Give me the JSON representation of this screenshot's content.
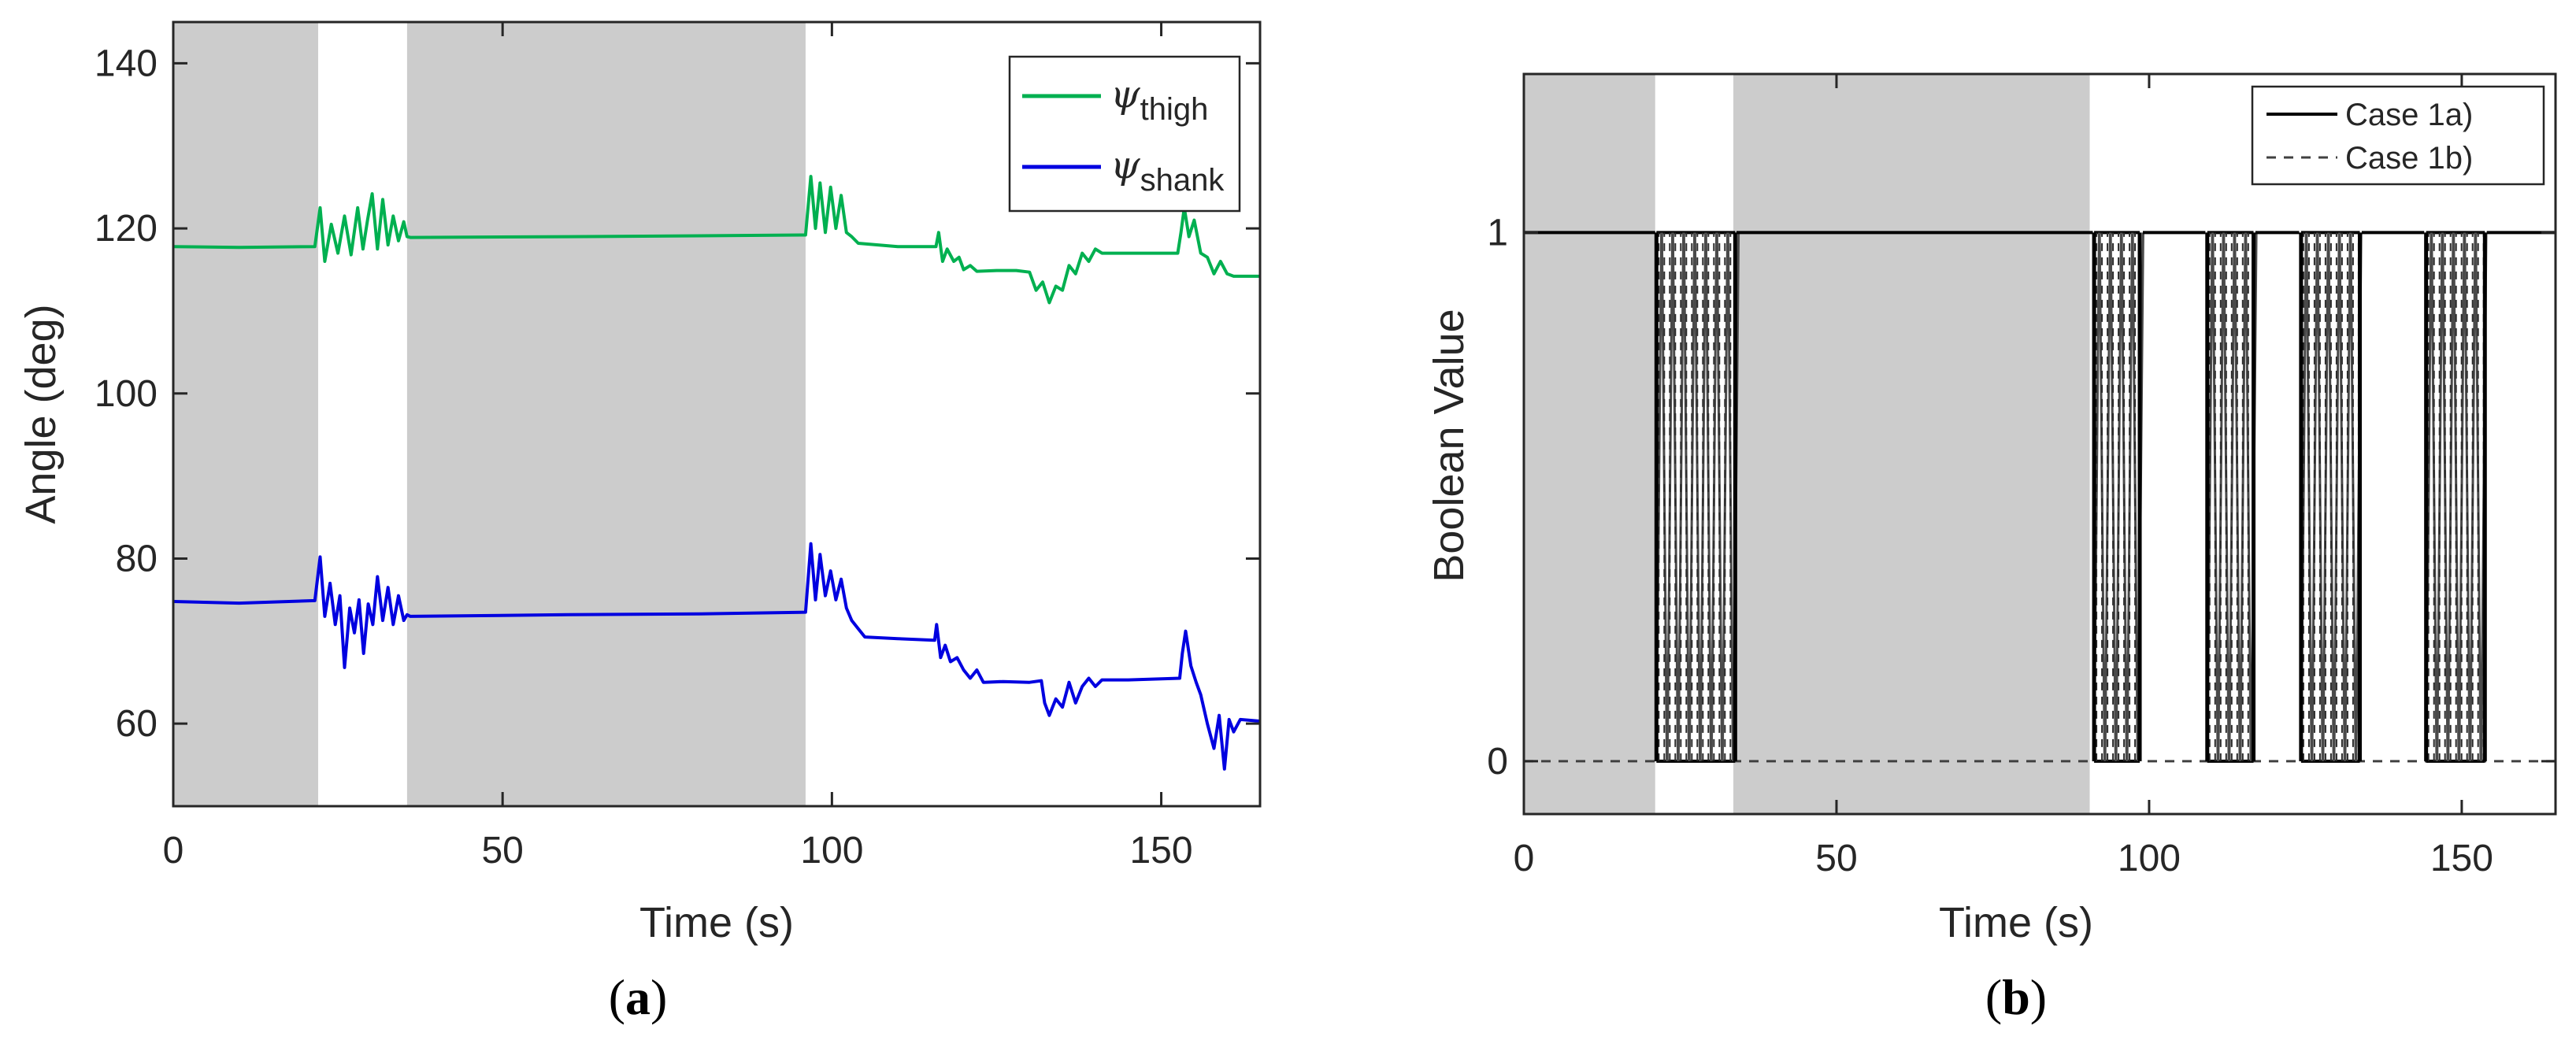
{
  "chart_data": [
    {
      "id": "a",
      "type": "line",
      "panel_label": {
        "open": "(",
        "letter": "a",
        "close": ")"
      },
      "xlabel": "Time (s)",
      "ylabel": "Angle (deg)",
      "xlim": [
        0,
        165
      ],
      "ylim": [
        50,
        145
      ],
      "xticks": [
        0,
        50,
        100,
        150
      ],
      "yticks": [
        60,
        80,
        100,
        120,
        140
      ],
      "grid": false,
      "legend_placement": "top-right",
      "shaded_regions": [
        [
          0,
          22
        ],
        [
          35.5,
          96
        ]
      ],
      "shade_color": "#cccccc",
      "series": [
        {
          "name": "thigh",
          "symbol": "ψ",
          "color": "#00b050",
          "points": [
            [
              0,
              117.8
            ],
            [
              10,
              117.7
            ],
            [
              21.5,
              117.8
            ],
            [
              22.3,
              122.5
            ],
            [
              23,
              116
            ],
            [
              24,
              120.5
            ],
            [
              25,
              117
            ],
            [
              26,
              121.5
            ],
            [
              27,
              116.8
            ],
            [
              28,
              122.5
            ],
            [
              28.8,
              117.5
            ],
            [
              29.5,
              121
            ],
            [
              30.2,
              124.2
            ],
            [
              31,
              117.5
            ],
            [
              31.8,
              123.5
            ],
            [
              32.6,
              118
            ],
            [
              33.4,
              121.5
            ],
            [
              34.2,
              118.5
            ],
            [
              35,
              120.8
            ],
            [
              35.5,
              119
            ],
            [
              36,
              118.9
            ],
            [
              60,
              119
            ],
            [
              80,
              119.1
            ],
            [
              96,
              119.2
            ],
            [
              96.8,
              126.3
            ],
            [
              97.5,
              120
            ],
            [
              98.2,
              125.5
            ],
            [
              99,
              119.5
            ],
            [
              99.8,
              125
            ],
            [
              100.6,
              120
            ],
            [
              101.4,
              124
            ],
            [
              102.2,
              119.5
            ],
            [
              103,
              119
            ],
            [
              104,
              118.2
            ],
            [
              110,
              117.8
            ],
            [
              115.8,
              117.8
            ],
            [
              116.2,
              119.5
            ],
            [
              116.8,
              116
            ],
            [
              117.5,
              117.5
            ],
            [
              118.5,
              116
            ],
            [
              119.3,
              116.5
            ],
            [
              120,
              115
            ],
            [
              121,
              115.5
            ],
            [
              122,
              114.8
            ],
            [
              125,
              114.9
            ],
            [
              128,
              114.9
            ],
            [
              130,
              114.7
            ],
            [
              131,
              112.5
            ],
            [
              132,
              113.5
            ],
            [
              133,
              111
            ],
            [
              134,
              113
            ],
            [
              135,
              112.5
            ],
            [
              136,
              115.5
            ],
            [
              137,
              114.5
            ],
            [
              138,
              117
            ],
            [
              139,
              116
            ],
            [
              140,
              117.5
            ],
            [
              141,
              117
            ],
            [
              144,
              117
            ],
            [
              148,
              117
            ],
            [
              152.5,
              117
            ],
            [
              153,
              119.5
            ],
            [
              153.5,
              122.5
            ],
            [
              154.2,
              119
            ],
            [
              155,
              121
            ],
            [
              156,
              117
            ],
            [
              157,
              116.5
            ],
            [
              158,
              114.5
            ],
            [
              159,
              116
            ],
            [
              160,
              114.5
            ],
            [
              161,
              114.2
            ],
            [
              165,
              114.2
            ]
          ]
        },
        {
          "name": "shank",
          "symbol": "ψ",
          "color": "#0000e0",
          "points": [
            [
              0,
              74.8
            ],
            [
              10,
              74.6
            ],
            [
              21.5,
              74.9
            ],
            [
              22.3,
              80.2
            ],
            [
              23,
              73
            ],
            [
              23.8,
              77
            ],
            [
              24.6,
              72
            ],
            [
              25.3,
              75.5
            ],
            [
              26,
              66.8
            ],
            [
              26.8,
              74
            ],
            [
              27.5,
              71
            ],
            [
              28.2,
              75
            ],
            [
              28.9,
              68.5
            ],
            [
              29.6,
              74.5
            ],
            [
              30.3,
              72
            ],
            [
              31,
              77.8
            ],
            [
              31.8,
              72.5
            ],
            [
              32.6,
              76.5
            ],
            [
              33.4,
              72
            ],
            [
              34.2,
              75.5
            ],
            [
              35,
              72.5
            ],
            [
              35.5,
              73.2
            ],
            [
              36,
              73
            ],
            [
              60,
              73.2
            ],
            [
              80,
              73.3
            ],
            [
              96,
              73.5
            ],
            [
              96.8,
              81.8
            ],
            [
              97.5,
              75
            ],
            [
              98.2,
              80.5
            ],
            [
              99,
              75.5
            ],
            [
              99.8,
              78.5
            ],
            [
              100.6,
              75
            ],
            [
              101.4,
              77.5
            ],
            [
              102.2,
              74
            ],
            [
              103,
              72.5
            ],
            [
              104,
              71.5
            ],
            [
              105,
              70.5
            ],
            [
              110,
              70.3
            ],
            [
              115.6,
              70.1
            ],
            [
              115.9,
              72
            ],
            [
              116.5,
              68
            ],
            [
              117.2,
              69.5
            ],
            [
              118,
              67.5
            ],
            [
              119,
              68
            ],
            [
              120,
              66.5
            ],
            [
              121,
              65.5
            ],
            [
              122,
              66.5
            ],
            [
              123,
              65
            ],
            [
              126,
              65.1
            ],
            [
              130,
              65
            ],
            [
              131.8,
              65.2
            ],
            [
              132.3,
              62.5
            ],
            [
              133,
              61
            ],
            [
              134,
              63
            ],
            [
              135,
              62
            ],
            [
              136,
              65
            ],
            [
              137,
              62.5
            ],
            [
              138,
              64.5
            ],
            [
              139,
              65.5
            ],
            [
              140,
              64.5
            ],
            [
              141,
              65.3
            ],
            [
              145,
              65.3
            ],
            [
              152.8,
              65.5
            ],
            [
              153.2,
              68.5
            ],
            [
              153.7,
              71.2
            ],
            [
              154.5,
              67
            ],
            [
              155.3,
              65
            ],
            [
              156,
              63.5
            ],
            [
              157,
              60
            ],
            [
              158,
              57
            ],
            [
              158.8,
              61
            ],
            [
              159.6,
              54.5
            ],
            [
              160.3,
              60.5
            ],
            [
              161,
              59
            ],
            [
              162,
              60.5
            ],
            [
              165,
              60.3
            ]
          ]
        }
      ]
    },
    {
      "id": "b",
      "type": "line",
      "panel_label": {
        "open": "(",
        "letter": "b",
        "close": ")"
      },
      "xlabel": "Time (s)",
      "ylabel": "Boolean Value",
      "xlim": [
        0,
        165
      ],
      "ylim": [
        -0.1,
        1.3
      ],
      "xticks": [
        0,
        50,
        100,
        150
      ],
      "yticks": [
        0,
        1
      ],
      "grid": false,
      "legend_placement": "top-right",
      "shaded_regions": [
        [
          0,
          21
        ],
        [
          33.5,
          90.5
        ]
      ],
      "shade_color": "#cccccc",
      "series": [
        {
          "name": "Case 1a)",
          "line_style": "solid",
          "color": "#000000",
          "high_intervals": [
            [
              0,
              21
            ],
            [
              34,
              91
            ],
            [
              99,
              109
            ],
            [
              117,
              124
            ],
            [
              134,
              144
            ],
            [
              154,
              165
            ]
          ],
          "oscillation_intervals": [
            [
              21.2,
              33.8
            ],
            [
              91.2,
              98.5
            ],
            [
              109.3,
              116.7
            ],
            [
              124.3,
              133.7
            ],
            [
              144.3,
              153.7
            ]
          ]
        },
        {
          "name": "Case 1b)",
          "line_style": "dashed",
          "color": "#404040",
          "constant_value": 0
        }
      ]
    }
  ]
}
